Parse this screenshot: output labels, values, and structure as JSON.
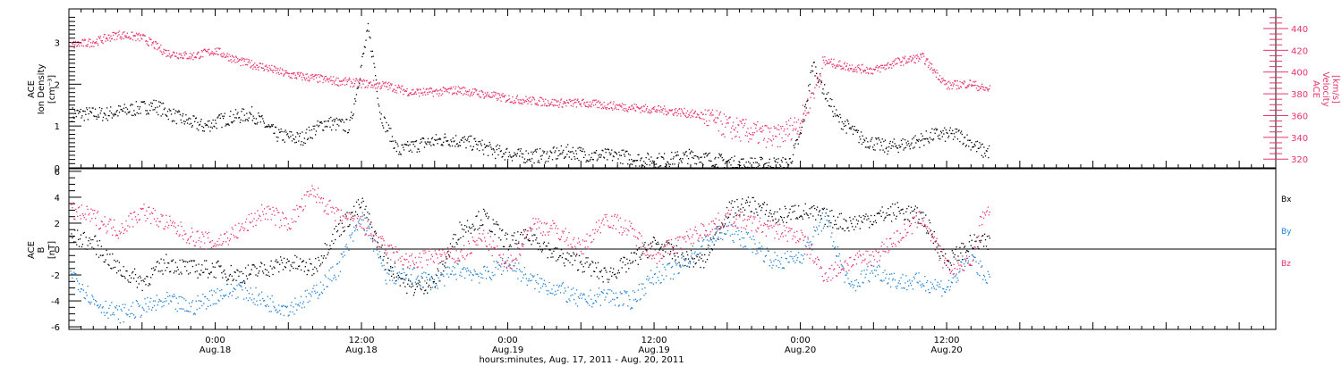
{
  "colors": {
    "black": "#000000",
    "red": "#e8336a",
    "blue": "#1f7fd4",
    "axis": "#000000"
  },
  "chart_data": [
    {
      "type": "scatter",
      "panel": "top",
      "ylabel_left": [
        "ACE",
        "Ion Density",
        "[cm⁻³]"
      ],
      "ylabel_right": [
        "ACE",
        "Velocity",
        "[km/s]"
      ],
      "ylim_left": [
        0,
        3.8
      ],
      "ylim_right": [
        312,
        458
      ],
      "yticks_left": [
        "0",
        "1",
        "2",
        "3"
      ],
      "yticks_right": [
        "320",
        "340",
        "360",
        "380",
        "400",
        "420",
        "440"
      ],
      "x_hours_range": [
        -12,
        87
      ],
      "series": [
        {
          "name": "density",
          "color": "black",
          "axis": "left",
          "x": [
            -9,
            -7,
            -5,
            -3,
            -1,
            1,
            3,
            5,
            7,
            9,
            11,
            12.5,
            13,
            13.5,
            15,
            17,
            19,
            21,
            23,
            25,
            27,
            29,
            31,
            33,
            35,
            37,
            39,
            41,
            43,
            45,
            47,
            48,
            49,
            50,
            51,
            53,
            55,
            57,
            59,
            61,
            63
          ],
          "y": [
            1.3,
            1.4,
            1.5,
            1.2,
            1.0,
            1.2,
            1.3,
            0.8,
            0.7,
            1.1,
            1.0,
            3.3,
            2.5,
            1.3,
            0.4,
            0.6,
            0.7,
            0.6,
            0.4,
            0.3,
            0.3,
            0.4,
            0.3,
            0.3,
            0.2,
            0.2,
            0.3,
            0.2,
            0.1,
            0.1,
            0.1,
            0.8,
            2.5,
            1.8,
            1.2,
            0.7,
            0.5,
            0.6,
            0.8,
            0.8,
            0.4
          ]
        },
        {
          "name": "velocity",
          "color": "red",
          "axis": "right",
          "x": [
            -12,
            -10,
            -8,
            -6,
            -4,
            -2,
            0,
            2,
            4,
            6,
            8,
            10,
            12,
            14,
            16,
            18,
            20,
            22,
            24,
            26,
            28,
            30,
            32,
            34,
            36,
            38,
            40,
            42,
            44,
            46,
            48,
            50,
            52,
            54,
            56,
            58,
            60,
            62,
            63
          ],
          "y": [
            425,
            428,
            435,
            432,
            418,
            415,
            420,
            410,
            405,
            398,
            395,
            392,
            390,
            388,
            382,
            382,
            384,
            380,
            376,
            374,
            372,
            372,
            370,
            368,
            366,
            364,
            360,
            350,
            345,
            340,
            355,
            410,
            405,
            402,
            410,
            414,
            388,
            390,
            385
          ]
        }
      ]
    },
    {
      "type": "scatter",
      "panel": "bottom",
      "ylabel_left": [
        "ACE",
        "B",
        "[nT]"
      ],
      "ylim": [
        -6.2,
        6.2
      ],
      "yticks_left": [
        "-6",
        "-4",
        "-2",
        "0",
        "2",
        "4",
        "6"
      ],
      "x_hours_range": [
        -12,
        87
      ],
      "legend_labels": [
        "Bx",
        "By",
        "Bz"
      ],
      "series": [
        {
          "name": "Bx",
          "color": "black",
          "x": [
            -12,
            -10,
            -8,
            -6,
            -4,
            -2,
            0,
            2,
            4,
            6,
            8,
            10,
            12,
            14,
            16,
            18,
            20,
            22,
            24,
            26,
            28,
            30,
            32,
            34,
            36,
            38,
            40,
            42,
            44,
            46,
            48,
            50,
            52,
            54,
            56,
            58,
            60,
            62,
            63
          ],
          "y": [
            1.0,
            0.5,
            -1.5,
            -2.5,
            -1.0,
            -1.5,
            -1.5,
            -2.0,
            -1.5,
            -1.0,
            -1.5,
            1.5,
            3.5,
            -1.0,
            -3.0,
            -2.5,
            1.5,
            2.5,
            0.5,
            1.0,
            -0.5,
            -1.0,
            -2.0,
            -1.0,
            0.5,
            -0.5,
            -1.0,
            3.0,
            3.5,
            2.5,
            3.0,
            2.5,
            2.0,
            2.5,
            3.0,
            2.5,
            -1.0,
            0.5,
            0.5
          ]
        },
        {
          "name": "By",
          "color": "blue",
          "x": [
            -12,
            -10,
            -8,
            -6,
            -4,
            -2,
            0,
            2,
            4,
            6,
            8,
            10,
            12,
            14,
            16,
            18,
            20,
            22,
            24,
            26,
            28,
            30,
            32,
            34,
            36,
            38,
            40,
            42,
            44,
            46,
            48,
            50,
            52,
            54,
            56,
            58,
            60,
            62,
            63
          ],
          "y": [
            -1.5,
            -4.0,
            -5.0,
            -4.5,
            -4.0,
            -4.5,
            -3.5,
            -3.0,
            -4.0,
            -4.5,
            -3.5,
            -1.5,
            2.5,
            -2.0,
            -2.0,
            -2.5,
            -1.5,
            -2.0,
            -1.0,
            -2.5,
            -3.0,
            -4.0,
            -3.5,
            -4.0,
            -2.0,
            -1.5,
            0.5,
            1.5,
            0.5,
            -1.0,
            -0.5,
            2.5,
            -3.0,
            -1.5,
            -2.5,
            -2.5,
            -3.0,
            -0.5,
            -2.0
          ]
        },
        {
          "name": "Bz",
          "color": "red",
          "x": [
            -12,
            -10,
            -8,
            -6,
            -4,
            -2,
            0,
            2,
            4,
            6,
            8,
            10,
            12,
            14,
            16,
            18,
            20,
            22,
            24,
            26,
            28,
            30,
            32,
            34,
            36,
            38,
            40,
            42,
            44,
            46,
            48,
            50,
            52,
            54,
            56,
            58,
            60,
            62,
            63
          ],
          "y": [
            3.0,
            2.5,
            1.5,
            3.0,
            2.0,
            1.0,
            0.5,
            1.5,
            3.0,
            2.0,
            4.5,
            2.5,
            2.0,
            0.0,
            -1.0,
            -0.5,
            -0.5,
            1.0,
            -1.5,
            2.0,
            1.5,
            0.0,
            2.5,
            1.5,
            -0.5,
            0.5,
            1.5,
            2.5,
            2.0,
            1.5,
            1.0,
            -2.0,
            -1.0,
            -0.5,
            1.0,
            2.5,
            -1.5,
            -1.0,
            3.0
          ]
        }
      ]
    }
  ],
  "x_axis": {
    "tick_hours": [
      0,
      12,
      24,
      36,
      48,
      60
    ],
    "tick_time_labels": [
      "0:00",
      "12:00",
      "0:00",
      "12:00",
      "0:00",
      "12:00"
    ],
    "tick_date_labels": [
      "Aug.18",
      "Aug.18",
      "Aug.19",
      "Aug.19",
      "Aug.20",
      "Aug.20"
    ],
    "caption": "hours:minutes, Aug. 17, 2011 - Aug. 20, 2011"
  }
}
